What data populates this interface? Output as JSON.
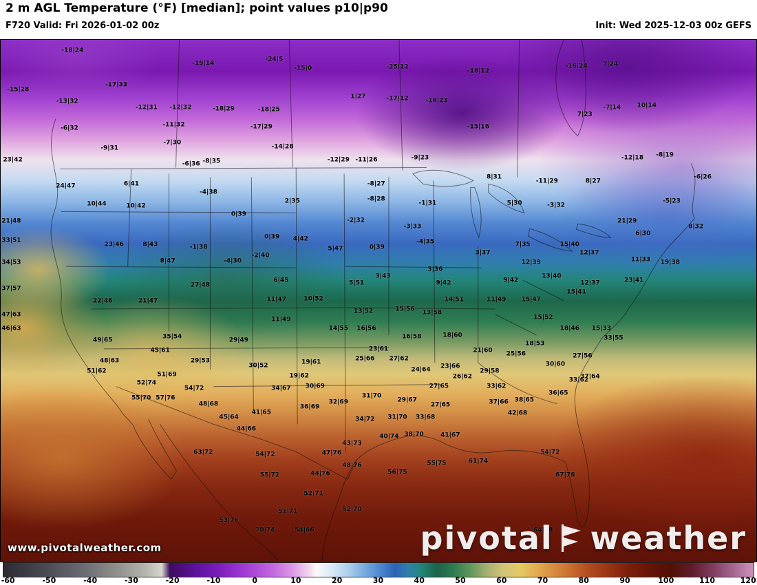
{
  "header": {
    "title": "2 m AGL Temperature (°F) [median]; point values p10|p90",
    "valid": "F720 Valid: Fri 2026-01-02 00z",
    "init": "Init: Wed 2025-12-03 00z GEFS"
  },
  "watermark": {
    "site": "www.pivotalweather.com",
    "brand_left": "pivotal",
    "brand_right": "weather"
  },
  "colorbar": {
    "ticks": [
      -60,
      -50,
      -40,
      -30,
      -20,
      -10,
      0,
      10,
      20,
      30,
      40,
      50,
      60,
      70,
      80,
      90,
      100,
      110,
      120
    ],
    "stops": [
      [
        -60,
        "#2b2b33"
      ],
      [
        -50,
        "#4a4a54"
      ],
      [
        -40,
        "#6e6e76"
      ],
      [
        -32,
        "#94948f"
      ],
      [
        -26,
        "#b5b5ad"
      ],
      [
        -22,
        "#d6d6cc"
      ],
      [
        -20,
        "#3f0c60"
      ],
      [
        -14,
        "#5c119c"
      ],
      [
        -8,
        "#7d1fbe"
      ],
      [
        -2,
        "#a23cd4"
      ],
      [
        4,
        "#c063de"
      ],
      [
        9,
        "#da94e4"
      ],
      [
        13,
        "#f0d2ee"
      ],
      [
        15,
        "#fbfbfb"
      ],
      [
        19,
        "#d7e8f6"
      ],
      [
        23,
        "#a9cdec"
      ],
      [
        27,
        "#74a8de"
      ],
      [
        31,
        "#4681ca"
      ],
      [
        34,
        "#2d63b6"
      ],
      [
        37,
        "#2e7fae"
      ],
      [
        40,
        "#23877d"
      ],
      [
        44,
        "#1a6347"
      ],
      [
        48,
        "#2e7c4f"
      ],
      [
        52,
        "#5f975a"
      ],
      [
        56,
        "#a3b06e"
      ],
      [
        60,
        "#d3c478"
      ],
      [
        64,
        "#e4ca62"
      ],
      [
        68,
        "#e2ab50"
      ],
      [
        72,
        "#d78d3e"
      ],
      [
        76,
        "#c96d2d"
      ],
      [
        80,
        "#b54e20"
      ],
      [
        85,
        "#9a3414"
      ],
      [
        90,
        "#7d1f0b"
      ],
      [
        95,
        "#661407"
      ],
      [
        100,
        "#531005"
      ],
      [
        105,
        "#5e1c2a"
      ],
      [
        110,
        "#7e3a5c"
      ],
      [
        115,
        "#a66490"
      ],
      [
        120,
        "#cf92bc"
      ]
    ]
  },
  "points": [
    [
      9.5,
      2.1,
      "-18|24"
    ],
    [
      26.8,
      4.6,
      "-19|14"
    ],
    [
      36.2,
      3.8,
      "-24|5"
    ],
    [
      40.0,
      5.5,
      "-15|0"
    ],
    [
      52.5,
      5.3,
      "-25|12"
    ],
    [
      63.2,
      6.0,
      "-18|12"
    ],
    [
      76.2,
      5.1,
      "-16|24"
    ],
    [
      80.7,
      4.7,
      "7|24"
    ],
    [
      2.3,
      9.6,
      "-15|28"
    ],
    [
      15.3,
      8.7,
      "-17|33"
    ],
    [
      8.8,
      11.8,
      "-13|32"
    ],
    [
      19.3,
      13.0,
      "-12|31"
    ],
    [
      23.8,
      13.0,
      "-12|32"
    ],
    [
      29.5,
      13.3,
      "-18|29"
    ],
    [
      35.5,
      13.5,
      "-18|25"
    ],
    [
      47.3,
      10.9,
      "1|27"
    ],
    [
      52.5,
      11.3,
      "-17|12"
    ],
    [
      57.7,
      11.7,
      "-18|23"
    ],
    [
      77.3,
      14.3,
      "7|23"
    ],
    [
      80.9,
      13.0,
      "-7|14"
    ],
    [
      85.5,
      12.7,
      "10|14"
    ],
    [
      9.1,
      17.0,
      "-6|32"
    ],
    [
      22.9,
      16.3,
      "-11|32"
    ],
    [
      34.5,
      16.7,
      "-17|29"
    ],
    [
      63.2,
      16.7,
      "-15|16"
    ],
    [
      14.4,
      20.8,
      "-9|31"
    ],
    [
      22.7,
      19.8,
      "-7|30"
    ],
    [
      37.3,
      20.5,
      "-14|28"
    ],
    [
      1.6,
      23.0,
      "23|42"
    ],
    [
      44.7,
      23.1,
      "-12|29"
    ],
    [
      48.4,
      23.1,
      "-11|26"
    ],
    [
      55.5,
      22.7,
      "-9|23"
    ],
    [
      83.6,
      22.7,
      "-12|18"
    ],
    [
      87.9,
      22.2,
      "-8|19"
    ],
    [
      25.2,
      23.8,
      "-6|36"
    ],
    [
      27.9,
      23.3,
      "-8|35"
    ],
    [
      8.6,
      28.0,
      "24|47"
    ],
    [
      17.3,
      27.7,
      "6|41"
    ],
    [
      27.5,
      29.3,
      "-4|38"
    ],
    [
      49.7,
      27.7,
      "-8|27"
    ],
    [
      65.3,
      26.4,
      "8|31"
    ],
    [
      72.3,
      27.1,
      "-11|29"
    ],
    [
      78.4,
      27.2,
      "8|27"
    ],
    [
      92.9,
      26.4,
      "-6|26"
    ],
    [
      12.7,
      31.5,
      "10|44"
    ],
    [
      17.9,
      31.9,
      "10|42"
    ],
    [
      38.6,
      30.9,
      "2|35"
    ],
    [
      49.7,
      30.6,
      "-8|28"
    ],
    [
      56.5,
      31.3,
      "-1|31"
    ],
    [
      68.0,
      31.4,
      "5|30"
    ],
    [
      73.5,
      31.8,
      "-3|32"
    ],
    [
      88.8,
      30.9,
      "-5|23"
    ],
    [
      1.4,
      34.8,
      "21|48"
    ],
    [
      31.5,
      33.5,
      "0|39"
    ],
    [
      47.0,
      34.6,
      "-2|32"
    ],
    [
      54.5,
      35.9,
      "-3|33"
    ],
    [
      82.9,
      34.8,
      "21|29"
    ],
    [
      92.0,
      35.9,
      "8|32"
    ],
    [
      1.4,
      38.5,
      "33|51"
    ],
    [
      15.0,
      39.2,
      "23|46"
    ],
    [
      19.8,
      39.2,
      "8|43"
    ],
    [
      26.2,
      39.8,
      "-1|38"
    ],
    [
      35.9,
      37.8,
      "0|39"
    ],
    [
      39.7,
      38.2,
      "4|42"
    ],
    [
      44.3,
      40.1,
      "5|47"
    ],
    [
      49.8,
      39.8,
      "0|39"
    ],
    [
      56.2,
      38.8,
      "-4|35"
    ],
    [
      63.8,
      40.9,
      "3|37"
    ],
    [
      69.1,
      39.2,
      "7|35"
    ],
    [
      75.3,
      39.3,
      "15|40"
    ],
    [
      85.0,
      37.2,
      "6|30"
    ],
    [
      84.7,
      42.2,
      "11|33"
    ],
    [
      88.6,
      42.7,
      "19|38"
    ],
    [
      1.4,
      42.7,
      "34|53"
    ],
    [
      22.1,
      42.4,
      "8|47"
    ],
    [
      30.7,
      42.4,
      "-4|30"
    ],
    [
      34.4,
      41.4,
      "-2|40"
    ],
    [
      57.5,
      44.0,
      "3|36"
    ],
    [
      70.2,
      42.7,
      "12|39"
    ],
    [
      77.9,
      40.9,
      "12|37"
    ],
    [
      1.4,
      47.7,
      "37|57"
    ],
    [
      26.4,
      47.0,
      "27|48"
    ],
    [
      37.1,
      46.1,
      "6|45"
    ],
    [
      47.1,
      46.6,
      "5|51"
    ],
    [
      50.6,
      45.3,
      "3|43"
    ],
    [
      58.6,
      46.6,
      "9|42"
    ],
    [
      67.5,
      46.1,
      "9|42"
    ],
    [
      72.9,
      45.3,
      "13|40"
    ],
    [
      78.0,
      46.6,
      "12|37"
    ],
    [
      83.8,
      46.1,
      "23|41"
    ],
    [
      13.5,
      50.1,
      "22|46"
    ],
    [
      19.5,
      50.1,
      "21|47"
    ],
    [
      36.5,
      49.8,
      "11|47"
    ],
    [
      41.4,
      49.7,
      "10|52"
    ],
    [
      48.0,
      52.0,
      "13|52"
    ],
    [
      53.5,
      51.6,
      "15|56"
    ],
    [
      57.1,
      52.3,
      "13|58"
    ],
    [
      60.0,
      49.8,
      "14|51"
    ],
    [
      65.6,
      49.8,
      "11|49"
    ],
    [
      70.2,
      49.8,
      "15|47"
    ],
    [
      76.2,
      48.4,
      "15|41"
    ],
    [
      1.4,
      52.7,
      "47|63"
    ],
    [
      1.4,
      55.3,
      "46|63"
    ],
    [
      37.1,
      53.6,
      "11|49"
    ],
    [
      44.7,
      55.3,
      "14|55"
    ],
    [
      48.4,
      55.3,
      "16|56"
    ],
    [
      54.4,
      56.9,
      "16|58"
    ],
    [
      59.8,
      56.6,
      "18|60"
    ],
    [
      71.8,
      53.2,
      "15|52"
    ],
    [
      75.3,
      55.3,
      "18|46"
    ],
    [
      79.5,
      55.3,
      "15|33"
    ],
    [
      13.5,
      57.6,
      "49|65"
    ],
    [
      22.7,
      56.9,
      "35|54"
    ],
    [
      31.5,
      57.6,
      "29|49"
    ],
    [
      21.1,
      59.5,
      "45|61"
    ],
    [
      50.0,
      59.3,
      "23|61"
    ],
    [
      63.8,
      59.5,
      "21|60"
    ],
    [
      70.7,
      58.2,
      "18|53"
    ],
    [
      81.1,
      57.2,
      "33|55"
    ],
    [
      14.4,
      61.5,
      "48|63"
    ],
    [
      26.4,
      61.5,
      "29|53"
    ],
    [
      48.2,
      61.1,
      "25|66"
    ],
    [
      52.7,
      61.1,
      "27|62"
    ],
    [
      68.2,
      60.2,
      "25|56"
    ],
    [
      77.0,
      60.6,
      "27|56"
    ],
    [
      12.7,
      63.5,
      "51|62"
    ],
    [
      22.0,
      64.1,
      "51|69"
    ],
    [
      34.1,
      62.4,
      "30|52"
    ],
    [
      41.1,
      61.8,
      "19|61"
    ],
    [
      39.5,
      64.4,
      "19|62"
    ],
    [
      55.6,
      63.2,
      "24|64"
    ],
    [
      59.5,
      62.6,
      "23|66"
    ],
    [
      61.1,
      64.5,
      "26|62"
    ],
    [
      64.7,
      63.5,
      "29|58"
    ],
    [
      73.4,
      62.2,
      "30|60"
    ],
    [
      76.5,
      65.2,
      "33|62"
    ],
    [
      78.0,
      64.5,
      "37|64"
    ],
    [
      19.3,
      65.7,
      "52|74"
    ],
    [
      25.6,
      66.8,
      "54|72"
    ],
    [
      37.1,
      66.8,
      "34|67"
    ],
    [
      41.6,
      66.4,
      "30|69"
    ],
    [
      49.1,
      68.3,
      "31|70"
    ],
    [
      58.0,
      66.4,
      "27|65"
    ],
    [
      65.6,
      66.4,
      "33|62"
    ],
    [
      73.8,
      67.7,
      "36|65"
    ],
    [
      18.6,
      68.7,
      "55|70"
    ],
    [
      21.8,
      68.7,
      "57|76"
    ],
    [
      27.5,
      69.8,
      "48|68"
    ],
    [
      40.9,
      70.3,
      "36|69"
    ],
    [
      44.7,
      69.4,
      "32|69"
    ],
    [
      53.8,
      69.0,
      "29|67"
    ],
    [
      58.2,
      70.0,
      "27|65"
    ],
    [
      65.9,
      69.4,
      "37|66"
    ],
    [
      69.3,
      69.0,
      "38|65"
    ],
    [
      68.4,
      71.6,
      "42|68"
    ],
    [
      30.2,
      72.3,
      "45|64"
    ],
    [
      34.5,
      71.4,
      "41|65"
    ],
    [
      48.2,
      72.7,
      "34|72"
    ],
    [
      52.5,
      72.3,
      "31|70"
    ],
    [
      56.2,
      72.3,
      "33|68"
    ],
    [
      32.5,
      74.6,
      "44|66"
    ],
    [
      46.5,
      77.3,
      "43|73"
    ],
    [
      51.4,
      76.0,
      "40|74"
    ],
    [
      54.7,
      75.6,
      "38|70"
    ],
    [
      59.5,
      75.7,
      "41|67"
    ],
    [
      26.8,
      79.0,
      "63|72"
    ],
    [
      35.0,
      79.5,
      "54|72"
    ],
    [
      43.8,
      79.2,
      "47|76"
    ],
    [
      57.7,
      81.2,
      "55|75"
    ],
    [
      63.2,
      80.8,
      "61|74"
    ],
    [
      72.7,
      79.0,
      "54|72"
    ],
    [
      35.6,
      83.4,
      "55|72"
    ],
    [
      42.3,
      83.2,
      "44|76"
    ],
    [
      46.5,
      81.6,
      "48|76"
    ],
    [
      52.5,
      82.9,
      "56|75"
    ],
    [
      74.7,
      83.4,
      "67|76"
    ],
    [
      41.4,
      86.9,
      "52|71"
    ],
    [
      38.0,
      90.4,
      "51|71"
    ],
    [
      46.5,
      90.0,
      "52|70"
    ],
    [
      30.2,
      92.1,
      "53|78"
    ],
    [
      35.0,
      94.0,
      "70|74"
    ],
    [
      40.2,
      94.0,
      "54|66"
    ],
    [
      71.8,
      94.0,
      "64|78"
    ]
  ]
}
